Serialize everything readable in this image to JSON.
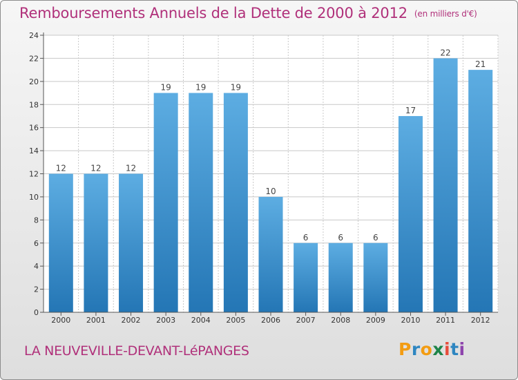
{
  "page": {
    "title": "Remboursements Annuels de la Dette de 2000 à 2012",
    "unit": "(en milliers d'€)",
    "commune": "LA NEUVEVILLE-DEVANT-LéPANGES",
    "logo_letters": [
      "P",
      "r",
      "o",
      "x",
      "i",
      "t",
      "i"
    ],
    "logo_colors": [
      "#f39c12",
      "#2e86c1",
      "#f39c12",
      "#1e8449",
      "#e74c3c",
      "#2e86c1",
      "#8e44ad"
    ]
  },
  "colors": {
    "title": "#b0307a",
    "bar_light": "#5dade2",
    "bar_dark": "#2476b5",
    "grid": "#c8c8c8",
    "axis": "#555555"
  },
  "chart_data": {
    "type": "bar",
    "categories": [
      "2000",
      "2001",
      "2002",
      "2003",
      "2004",
      "2005",
      "2006",
      "2007",
      "2008",
      "2009",
      "2010",
      "2011",
      "2012"
    ],
    "values": [
      12,
      12,
      12,
      19,
      19,
      19,
      10,
      6,
      6,
      6,
      17,
      22,
      21
    ],
    "ylim": [
      0,
      24
    ],
    "yticks": [
      0,
      2,
      4,
      6,
      8,
      10,
      12,
      14,
      16,
      18,
      20,
      22,
      24
    ],
    "grid": true,
    "data_labels": true
  }
}
